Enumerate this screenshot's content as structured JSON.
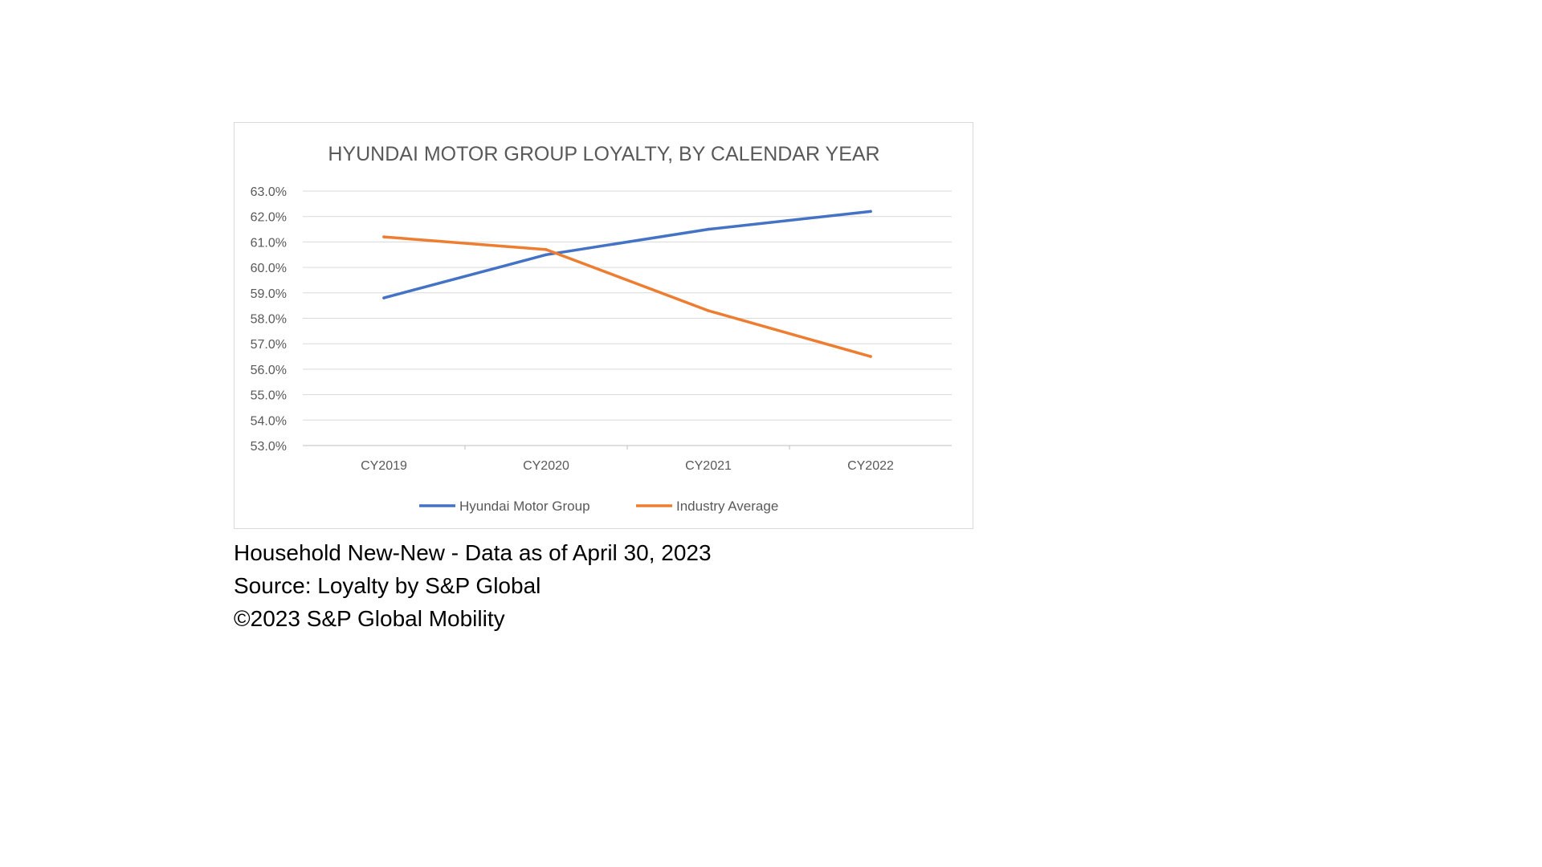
{
  "chart_data": {
    "type": "line",
    "title": "HYUNDAI MOTOR GROUP LOYALTY, BY CALENDAR YEAR",
    "categories": [
      "CY2019",
      "CY2020",
      "CY2021",
      "CY2022"
    ],
    "series": [
      {
        "name": "Hyundai Motor Group",
        "color": "#4472C4",
        "values": [
          58.8,
          60.5,
          61.5,
          62.2
        ]
      },
      {
        "name": "Industry Average",
        "color": "#ED7D31",
        "values": [
          61.2,
          60.7,
          58.3,
          56.5
        ]
      }
    ],
    "ylim": [
      53.0,
      63.0
    ],
    "yticks": [
      "63.0%",
      "62.0%",
      "61.0%",
      "60.0%",
      "59.0%",
      "58.0%",
      "57.0%",
      "56.0%",
      "55.0%",
      "54.0%",
      "53.0%"
    ],
    "y_tick_values": [
      63,
      62,
      61,
      60,
      59,
      58,
      57,
      56,
      55,
      54,
      53
    ],
    "grid": true,
    "legend_position": "bottom"
  },
  "caption": {
    "line1": "Household New-New - Data as of April 30, 2023",
    "line2": "Source: Loyalty by S&P Global",
    "line3": "©2023 S&P Global Mobility"
  }
}
